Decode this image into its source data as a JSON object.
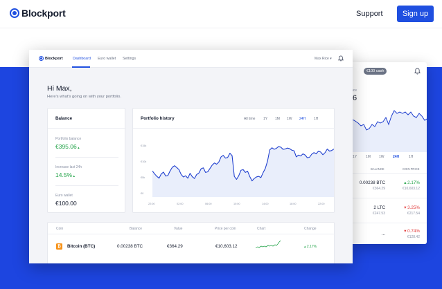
{
  "site": {
    "logo": "Blockport",
    "support": "Support",
    "signup": "Sign up"
  },
  "mobile": {
    "cash_badge": "€100 cash",
    "balance_label": "nce",
    "balance_value": "6",
    "tabs": [
      "1Y",
      "1M",
      "1W",
      "24H",
      "1H"
    ],
    "active_tab": "24H",
    "columns": [
      "BALANCE",
      "COIN PRICE"
    ],
    "rows": [
      {
        "amount": "0.00238 BTC",
        "fiat": "€364.29",
        "change": "2.17%",
        "direction": "up",
        "price": "€10,603.12"
      },
      {
        "amount": "2 LTC",
        "fiat": "€247.53",
        "change": "3.25%",
        "direction": "down",
        "price": "€217.54"
      },
      {
        "amount": "...",
        "fiat": "",
        "change": "0.74%",
        "direction": "down",
        "price": "€128.42"
      }
    ]
  },
  "dashboard": {
    "logo": "Blockport",
    "nav": {
      "dashboard": "Dashboard",
      "euro_wallet": "Euro wallet",
      "settings": "Settings"
    },
    "user": "Max Rice",
    "greeting": "Hi Max,",
    "subtitle": "Here's what's going on with your portfolio.",
    "balance_card": {
      "title": "Balance",
      "portfolio_label": "Portfolio balance",
      "portfolio_value": "€395.06",
      "increase_label": "Increase last 24h",
      "increase_value": "14.5%",
      "euro_label": "Euro wallet",
      "euro_value": "€100.00"
    },
    "history_card": {
      "title": "Portfolio history",
      "ranges": [
        "All time",
        "1Y",
        "1M",
        "1W",
        "24H",
        "1H"
      ],
      "active_range": "24H"
    },
    "coins_table": {
      "headers": {
        "coin": "Coin",
        "balance": "Balance",
        "value": "Value",
        "price": "Price per coin",
        "chart": "Chart",
        "change": "Change"
      },
      "rows": [
        {
          "icon": "₿",
          "name": "Bitcoin (BTC)",
          "balance": "0.00238 BTC",
          "value": "€364.29",
          "price": "€10,603.12",
          "change": "2.17%"
        }
      ]
    }
  },
  "chart_data": {
    "type": "area",
    "title": "Portfolio history",
    "x_ticks": [
      "22:00",
      "02:00",
      "06:00",
      "10:00",
      "14:00",
      "18:00",
      "22:00"
    ],
    "y_ticks": [
      "€0",
      "€5k",
      "€10k",
      "€15k"
    ],
    "ylim": [
      0,
      20000
    ],
    "values": [
      8600,
      7600,
      6800,
      6200,
      7600,
      8200,
      6900,
      7100,
      8600,
      9800,
      10300,
      9700,
      9000,
      7400,
      6600,
      7000,
      6200,
      7800,
      6700,
      6100,
      7400,
      7900,
      9300,
      9600,
      8100,
      8300,
      9400,
      10500,
      11200,
      10800,
      11500,
      13200,
      13700,
      12800,
      13000,
      14400,
      13600,
      6800,
      5800,
      7000,
      8800,
      9000,
      8100,
      8500,
      6700,
      5300,
      6100,
      6600,
      6800,
      6400,
      8000,
      9400,
      11800,
      15500,
      16200,
      15700,
      16000,
      16600,
      16400,
      15700,
      15800,
      16100,
      15900,
      15400,
      15200,
      13200,
      13800,
      13500,
      14200,
      13800,
      12900,
      13100,
      14100,
      14600,
      14200,
      15100,
      14800,
      13900,
      14600,
      15800,
      15100,
      15300,
      15800
    ],
    "line_color": "#1f3fcf",
    "fill_color": "#e9eefb"
  }
}
